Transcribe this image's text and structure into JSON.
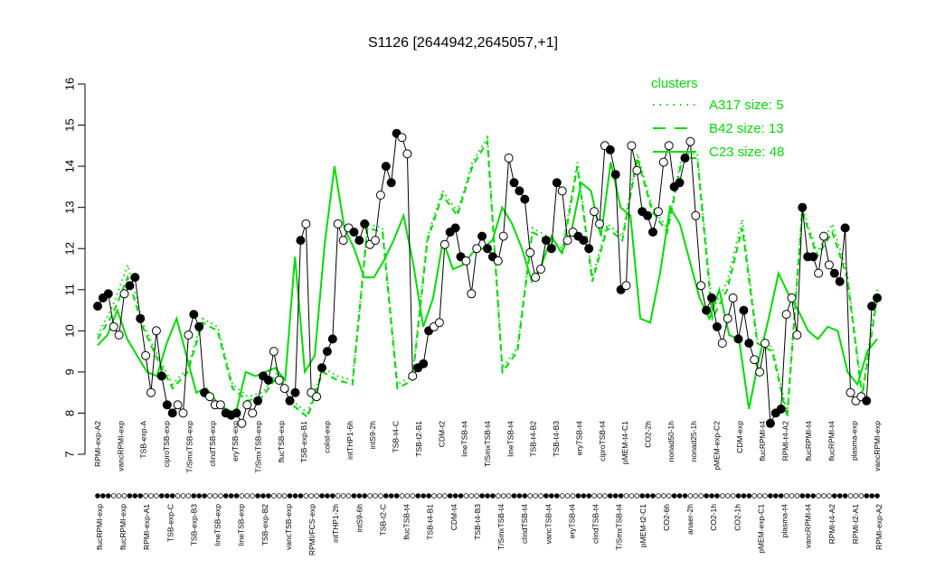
{
  "chart_data": {
    "type": "line",
    "title": "S1126 [2644942,2645057,+1]",
    "xlabel": "",
    "ylabel": "",
    "ylim": [
      7,
      16
    ],
    "yticks": [
      7,
      8,
      9,
      10,
      11,
      12,
      13,
      14,
      15,
      16
    ],
    "legend": {
      "title": "clusters",
      "position": "top-right",
      "entries": [
        {
          "label": "A317 size: 5",
          "style": "dotted"
        },
        {
          "label": "B42 size: 13",
          "style": "dashed"
        },
        {
          "label": "C23 size: 48",
          "style": "solid"
        }
      ]
    },
    "colors": {
      "cluster": "#00dd00",
      "sample": "#000000"
    },
    "x_labels_row1": [
      "RPMI-exp-A2",
      "vancRPMI-exp",
      "TSB-exp-A",
      "ciproTSB-exp",
      "T/SmxTSB-exp",
      "clindTSB-exp",
      "eryTSB-exp",
      "T/SmxTSB-exp",
      "flucTSB-exp",
      "TSB-exp-B1",
      "colist-exp",
      "intTHP1-6h",
      "intS9-2h",
      "TSB-t4-C",
      "TSB-t2-B1",
      "CDM-t2",
      "lineTSB-t4",
      "T/SmxTSB-t4",
      "lineTSB-t4",
      "TSB-t4-B2",
      "TSB-t4-B3",
      "eryTSB-t4",
      "ciproTSB-t4",
      "pMEM-t4-C1",
      "CO2-2h",
      "nonad50-1h",
      "nonad25-1h",
      "pMEM-exp-C2",
      "CDM-exp",
      "flucRPMI-t4",
      "RPMI-t4-A2",
      "flucRPMI-t4",
      "flucRPMI-t4",
      "plasma-exp",
      "vancRPMI-exp"
    ],
    "x_labels_row2": [
      "flucRPMI-exp",
      "flucRPMI-exp",
      "RPMI-exp-A1",
      "TSB-exp-C",
      "TSB-exp-B3",
      "lineTSB-exp",
      "lineTSB-exp",
      "TSB-exp-B2",
      "vancTSB-exp",
      "RPMI/FCS-exp",
      "intTHP1-2h",
      "intS9-6h",
      "TSB-t2-C",
      "flucTSB-t4",
      "TSB-t4-B1",
      "CDM-t4",
      "TSB-t4-B3",
      "T/SmxTSB-t4",
      "clindTSB-t4",
      "vancTSB-t4",
      "eryTSB-t4",
      "clindTSB-t4",
      "T/SmxTSB-t4",
      "pMEM-t2-C1",
      "CO2-6h",
      "anaer-2h",
      "CO2-1h",
      "CO2-1h",
      "pMEM-exp-C1",
      "plasma-t4",
      "vancRPMI-t4",
      "RPMI-t4-A2",
      "RPMI-t2-A1",
      "RPMI-exp-A2"
    ],
    "sample_values": [
      10.6,
      10.8,
      10.9,
      10.1,
      9.9,
      10.9,
      11.1,
      11.3,
      10.3,
      9.4,
      8.5,
      10.0,
      8.9,
      8.2,
      8.0,
      8.2,
      8.0,
      9.9,
      10.4,
      10.1,
      8.5,
      8.4,
      8.2,
      8.2,
      8.0,
      7.95,
      8.0,
      7.75,
      8.2,
      8.0,
      8.3,
      8.9,
      8.8,
      9.5,
      8.8,
      8.6,
      8.3,
      8.5,
      12.2,
      12.6,
      8.5,
      8.4,
      9.1,
      9.5,
      9.8,
      12.6,
      12.2,
      12.5,
      12.4,
      12.2,
      12.6,
      12.1,
      12.2,
      13.3,
      14.0,
      13.6,
      14.8,
      14.7,
      14.3,
      8.9,
      9.1,
      9.2,
      10.0,
      10.1,
      10.2,
      12.1,
      12.4,
      12.5,
      11.8,
      11.7,
      10.9,
      12.0,
      12.3,
      12.0,
      11.8,
      11.7,
      12.3,
      14.2,
      13.6,
      13.4,
      13.2,
      11.9,
      11.3,
      11.5,
      12.2,
      12.0,
      13.6,
      13.4,
      12.2,
      12.4,
      12.3,
      12.2,
      12.0,
      12.9,
      12.6,
      14.5,
      14.4,
      13.8,
      11.0,
      11.1,
      14.5,
      13.9,
      12.9,
      12.8,
      12.4,
      12.9,
      14.1,
      14.5,
      13.5,
      13.6,
      14.2,
      14.6,
      12.8,
      11.1,
      10.5,
      10.8,
      10.1,
      9.7,
      10.3,
      10.8,
      9.8,
      10.5,
      9.7,
      9.3,
      9.0,
      9.7,
      7.75,
      8.0,
      8.1,
      10.4,
      10.8,
      9.9,
      13.0,
      11.8,
      11.8,
      11.4,
      12.3,
      11.6,
      11.4,
      11.2,
      12.5,
      8.5,
      8.3,
      8.4,
      8.3,
      10.6,
      10.8
    ],
    "cluster_series": [
      {
        "name": "C23 size: 48",
        "values": [
          9.65,
          9.9,
          10.5,
          9.8,
          9.4,
          9.0,
          8.9,
          9.7,
          10.3,
          9.4,
          8.5,
          8.6,
          8.3,
          8.1,
          8.0,
          9.0,
          8.9,
          9.0,
          9.1,
          8.8,
          11.8,
          9.0,
          9.4,
          12.1,
          14.0,
          12.5,
          12.0,
          11.3,
          11.3,
          11.7,
          12.2,
          12.8,
          11.6,
          10.1,
          10.8,
          12.2,
          11.5,
          11.6,
          11.9,
          12.0,
          12.2,
          13.0,
          12.6,
          12.0,
          11.2,
          11.6,
          12.3,
          11.9,
          12.4,
          13.6,
          13.4,
          12.3,
          14.1,
          13.0,
          12.8,
          10.3,
          10.2,
          11.4,
          13.0,
          12.6,
          11.7,
          10.8,
          10.3,
          11.0,
          9.9,
          9.8,
          8.1,
          9.3,
          10.3,
          11.4,
          10.9,
          10.5,
          10.0,
          9.8,
          10.1,
          10.0,
          9.0,
          8.7,
          9.5,
          9.8
        ]
      },
      {
        "name": "B42 size: 13",
        "values": [
          9.8,
          10.4,
          11.3,
          10.1,
          9.3,
          8.6,
          9.0,
          10.2,
          10.0,
          8.6,
          8.3,
          8.4,
          8.9,
          8.2,
          7.9,
          9.0,
          8.8,
          8.7,
          12.5,
          12.4,
          8.6,
          8.8,
          12.2,
          13.3,
          12.8,
          14.0,
          14.6,
          9.0,
          9.5,
          12.4,
          12.2,
          11.9,
          14.0,
          11.2,
          12.5,
          12.2,
          14.2,
          12.9,
          12.4,
          14.2,
          14.2,
          10.3,
          11.0,
          12.5,
          9.7,
          9.5,
          7.9,
          12.9,
          11.8,
          12.4,
          11.3,
          8.4,
          10.8
        ]
      },
      {
        "name": "A317 size: 5",
        "values": [
          9.9,
          10.6,
          11.6,
          10.2,
          9.4,
          8.7,
          9.1,
          10.3,
          10.1,
          8.7,
          8.4,
          8.5,
          9.0,
          8.3,
          8.0,
          9.1,
          8.9,
          8.8,
          12.6,
          12.5,
          8.7,
          8.9,
          12.3,
          13.4,
          12.9,
          14.1,
          14.7,
          9.1,
          9.6,
          12.5,
          12.3,
          12.0,
          14.1,
          11.3,
          12.6,
          12.3,
          14.3,
          13.0,
          12.5,
          14.3,
          14.3,
          10.5,
          11.2,
          12.7,
          9.8,
          9.6,
          8.0,
          13.0,
          11.9,
          12.6,
          11.4,
          8.5,
          11.0
        ]
      }
    ]
  }
}
